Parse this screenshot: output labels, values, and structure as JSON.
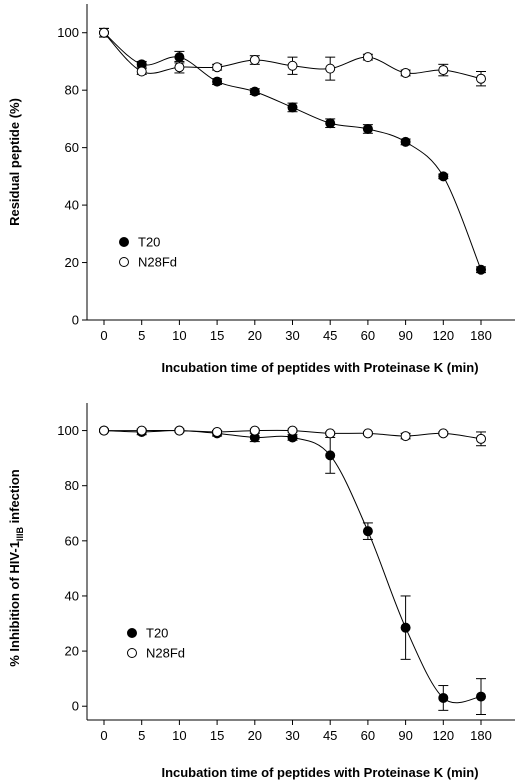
{
  "chart_data": [
    {
      "type": "line",
      "xlabel": "Incubation time of peptides with Proteinase K (min)",
      "ylabel": "Residual peptide (%)",
      "ylim": [
        0,
        110
      ],
      "yticks": [
        "0",
        "20",
        "40",
        "60",
        "80",
        "100"
      ],
      "categories": [
        "0",
        "5",
        "10",
        "15",
        "20",
        "30",
        "45",
        "60",
        "90",
        "120",
        "180"
      ],
      "legend_position": "bottom-left",
      "grid": false,
      "series": [
        {
          "name": "T20",
          "marker": "filled-circle",
          "values": [
            100,
            89,
            91.5,
            83,
            79.5,
            74,
            68.5,
            66.5,
            62,
            50,
            17.5
          ],
          "errors": [
            1.5,
            1,
            2,
            1,
            1,
            1.5,
            1.5,
            1.5,
            1,
            0.8,
            1
          ]
        },
        {
          "name": "N28Fd",
          "marker": "open-circle",
          "values": [
            100,
            86.5,
            88,
            88,
            90.5,
            88.5,
            87.5,
            91.5,
            86,
            87,
            84
          ],
          "errors": [
            1.5,
            1,
            2,
            1,
            1.5,
            3,
            4,
            1,
            1,
            2,
            2.5
          ]
        }
      ]
    },
    {
      "type": "line",
      "xlabel": "Incubation time of peptides with Proteinase K (min)",
      "ylabel_main": "% Inhibition of HIV-1",
      "ylabel_sub": "IIIB",
      "ylabel_end": " infection",
      "ylim": [
        -5,
        110
      ],
      "yticks": [
        "0",
        "20",
        "40",
        "60",
        "80",
        "100"
      ],
      "categories": [
        "0",
        "5",
        "10",
        "15",
        "20",
        "30",
        "45",
        "60",
        "90",
        "120",
        "180"
      ],
      "legend_position": "bottom-left",
      "grid": false,
      "series": [
        {
          "name": "T20",
          "marker": "filled-circle",
          "values": [
            100,
            99.5,
            100,
            99,
            97.5,
            97.5,
            91,
            63.5,
            28.5,
            3,
            3.5
          ],
          "errors": [
            0.5,
            1,
            0.5,
            1,
            1.5,
            1,
            6.5,
            3,
            11.5,
            4.5,
            6.5
          ]
        },
        {
          "name": "N28Fd",
          "marker": "open-circle",
          "values": [
            100,
            100,
            100,
            99.5,
            100,
            100,
            99,
            99,
            98,
            99,
            97
          ],
          "errors": [
            0.5,
            0.5,
            0.5,
            0.5,
            0.5,
            0.5,
            0.5,
            0.5,
            1,
            0.5,
            2.5
          ]
        }
      ]
    }
  ]
}
